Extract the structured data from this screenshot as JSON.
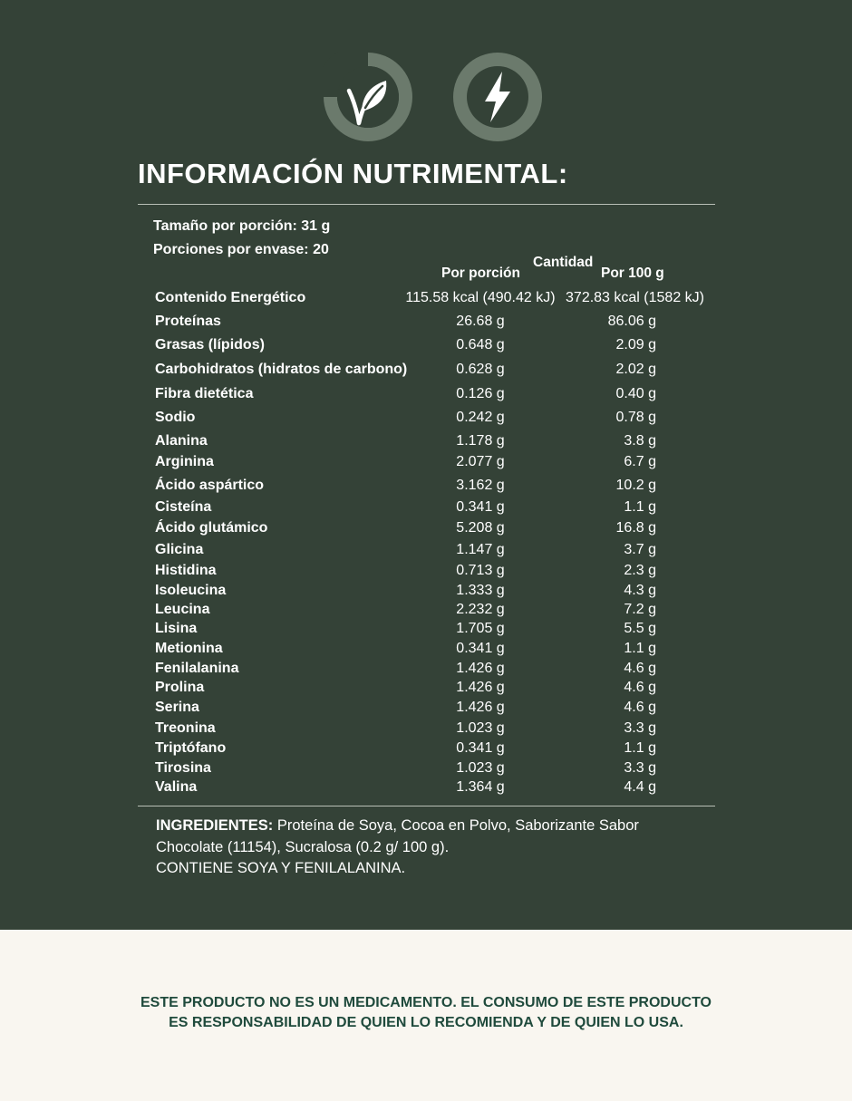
{
  "title": "INFORMACIÓN NUTRIMENTAL:",
  "serving_size": "Tamaño por porción: 31 g",
  "servings_per_container": "Porciones por envase: 20",
  "columns": {
    "cantidad": "Cantidad",
    "por_porcion": "Por porción",
    "por_100g": "Por 100 g"
  },
  "icons": [
    "vegan-leaf-icon",
    "lightning-bolt-icon"
  ],
  "rows": [
    {
      "name": "Contenido Energético",
      "per_serving": "115.58 kcal (490.42 kJ)",
      "per_100g": "372.83 kcal (1582 kJ)"
    },
    {
      "name": "Proteínas",
      "per_serving": "26.68 g",
      "per_100g": "86.06 g"
    },
    {
      "name": "Grasas (lípidos)",
      "per_serving": "0.648 g",
      "per_100g": "2.09 g"
    },
    {
      "name": "Carbohidratos (hidratos de carbono)",
      "per_serving": "0.628 g",
      "per_100g": "2.02 g"
    },
    {
      "name": "Fibra dietética",
      "per_serving": "0.126 g",
      "per_100g": "0.40 g"
    },
    {
      "name": "Sodio",
      "per_serving": "0.242 g",
      "per_100g": "0.78 g"
    },
    {
      "name": "Alanina",
      "per_serving": "1.178 g",
      "per_100g": "3.8 g"
    },
    {
      "name": "Arginina",
      "per_serving": "2.077 g",
      "per_100g": "6.7 g"
    },
    {
      "name": "Ácido aspártico",
      "per_serving": "3.162 g",
      "per_100g": "10.2 g"
    },
    {
      "name": "Cisteína",
      "per_serving": "0.341 g",
      "per_100g": "1.1 g"
    },
    {
      "name": "Ácido glutámico",
      "per_serving": "5.208 g",
      "per_100g": "16.8 g"
    },
    {
      "name": "Glicina",
      "per_serving": "1.147 g",
      "per_100g": "3.7 g"
    },
    {
      "name": "Histidina",
      "per_serving": "0.713 g",
      "per_100g": "2.3 g"
    },
    {
      "name": "Isoleucina",
      "per_serving": "1.333 g",
      "per_100g": "4.3 g"
    },
    {
      "name": "Leucina",
      "per_serving": "2.232 g",
      "per_100g": "7.2 g"
    },
    {
      "name": "Lisina",
      "per_serving": "1.705 g",
      "per_100g": "5.5 g"
    },
    {
      "name": "Metionina",
      "per_serving": "0.341 g",
      "per_100g": "1.1 g"
    },
    {
      "name": "Fenilalanina",
      "per_serving": "1.426 g",
      "per_100g": "4.6 g"
    },
    {
      "name": "Prolina",
      "per_serving": "1.426 g",
      "per_100g": "4.6 g"
    },
    {
      "name": "Serina",
      "per_serving": "1.426 g",
      "per_100g": "4.6 g"
    },
    {
      "name": "Treonina",
      "per_serving": "1.023 g",
      "per_100g": "3.3 g"
    },
    {
      "name": "Triptófano",
      "per_serving": "0.341 g",
      "per_100g": "1.1 g"
    },
    {
      "name": "Tirosina",
      "per_serving": "1.023 g",
      "per_100g": "3.3 g"
    },
    {
      "name": "Valina",
      "per_serving": "1.364 g",
      "per_100g": "4.4 g"
    }
  ],
  "ingredients": {
    "label": "INGREDIENTES:",
    "text": "Proteína de Soya,  Cocoa en Polvo, Saborizante Sabor Chocolate (11154), Sucralosa (0.2 g/ 100 g).",
    "warning": "CONTIENE SOYA Y FENILALANINA."
  },
  "disclaimer": {
    "line1": "ESTE PRODUCTO NO ES UN MEDICAMENTO. EL CONSUMO DE ESTE PRODUCTO",
    "line2": "ES RESPONSABILIDAD DE QUIEN LO RECOMIENDA Y DE QUIEN LO USA."
  },
  "colors": {
    "panel_bg": "#344237",
    "page_bg": "#f9f6f0",
    "icon_ring": "#6b7a6c",
    "disclaimer_text": "#1f4a3c"
  }
}
